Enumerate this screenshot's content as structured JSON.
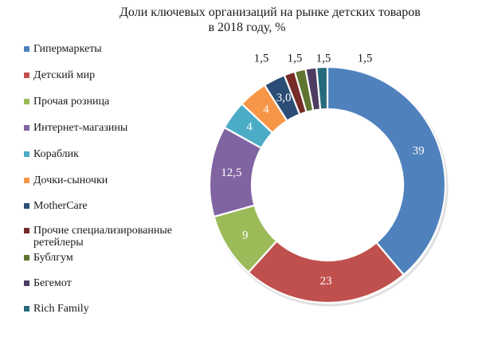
{
  "chart_data": {
    "type": "pie",
    "style": "donut",
    "title": "Доли ключевых организаций на рынке детских товаров в 2018 году, %",
    "title_lines": [
      "Доли ключевых организаций на рынке детских товаров",
      "в 2018 году, %"
    ],
    "legend_position": "left",
    "categories": [
      "Гипермаркеты",
      "Детский мир",
      "Прочая розница",
      "Интернет-магазины",
      "Кораблик",
      "Дочки-сыночки",
      "MotherCare",
      "Прочие специализированные ретейлеры",
      "Бублгум",
      "Бегемот",
      "Rich Family"
    ],
    "values": [
      39,
      23,
      9,
      12.5,
      4,
      4,
      3,
      1.5,
      1.5,
      1.5,
      1.5
    ],
    "data_labels": [
      "39",
      "23",
      "9",
      "12,5",
      "4",
      "4",
      "3,0",
      "1,5",
      "1,5",
      "1,5",
      "1,5"
    ],
    "colors": [
      "#4f81bd",
      "#c0504d",
      "#9bbb59",
      "#8064a2",
      "#4bacc6",
      "#f79646",
      "#2c4d75",
      "#772c2a",
      "#5f7530",
      "#4d3b62",
      "#276a7c"
    ]
  }
}
